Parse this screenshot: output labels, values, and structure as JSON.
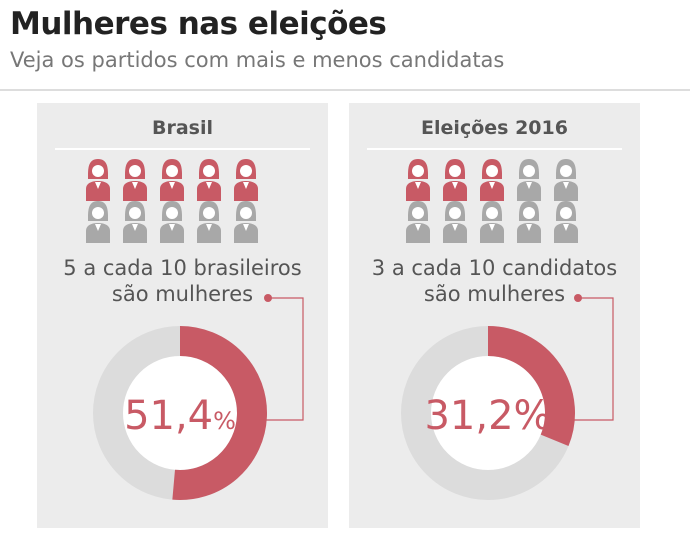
{
  "header": {
    "title": "Mulheres nas eleições",
    "subtitle": "Veja os partidos com mais e menos candidatas"
  },
  "colors": {
    "highlight": "#c85a65",
    "icon_grey": "#a8a8a8",
    "ring_grey": "#dcdcdc"
  },
  "chart_data": [
    {
      "type": "pie",
      "title": "Brasil",
      "caption_line1": "5 a cada 10 brasileiros",
      "caption_line2": "são mulheres",
      "icons_highlighted": 5,
      "icons_total": 10,
      "value": 51.4,
      "value_label": "51,4",
      "unit": "%"
    },
    {
      "type": "pie",
      "title": "Eleições 2016",
      "caption_line1": "3 a cada 10 candidatos",
      "caption_line2": "são mulheres",
      "icons_highlighted": 3,
      "icons_total": 10,
      "value": 31.2,
      "value_label": "31,2",
      "unit": "%"
    }
  ]
}
